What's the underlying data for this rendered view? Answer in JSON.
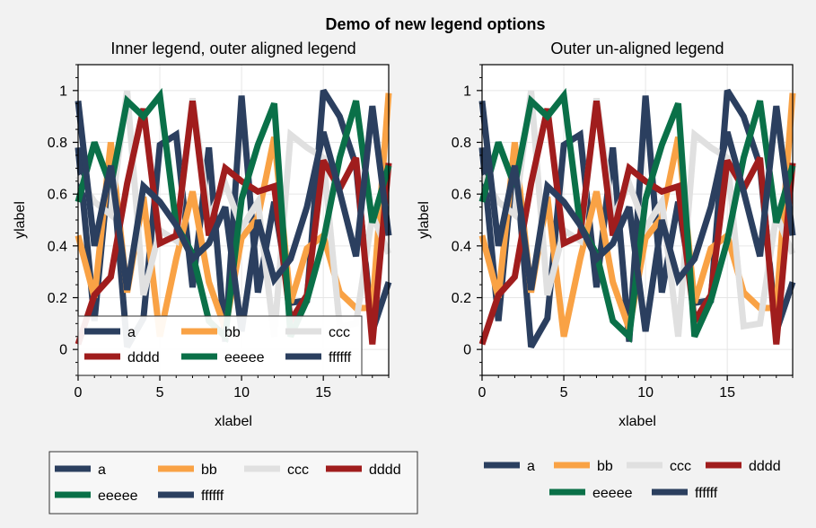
{
  "figure": {
    "suptitle": "Demo of new legend options"
  },
  "chart_data": [
    {
      "type": "line",
      "title": "Inner legend, outer aligned legend",
      "xlabel": "xlabel",
      "ylabel": "ylabel",
      "xlim": [
        0,
        19
      ],
      "ylim": [
        -0.1,
        1.1
      ],
      "xticks": [
        "0",
        "5",
        "10",
        "15"
      ],
      "yticks": [
        "0",
        "0.2",
        "0.4",
        "0.6",
        "0.8",
        "1"
      ],
      "grid": true,
      "x": [
        0,
        1,
        2,
        3,
        4,
        5,
        6,
        7,
        8,
        9,
        10,
        11,
        12,
        13,
        14,
        15,
        16,
        17,
        18,
        19
      ],
      "series": [
        {
          "name": "a",
          "color": "#2b3f5f",
          "values": [
            0.78,
            0.11,
            0.77,
            0.01,
            0.12,
            0.79,
            0.83,
            0.24,
            0.78,
            0.03,
            0.98,
            0.22,
            0.57,
            0.18,
            0.19,
            1.0,
            0.9,
            0.71,
            0.07,
            0.26
          ]
        },
        {
          "name": "bb",
          "color": "#f9a245",
          "values": [
            0.44,
            0.2,
            0.8,
            0.22,
            0.59,
            0.05,
            0.35,
            0.61,
            0.26,
            0.08,
            0.43,
            0.51,
            0.82,
            0.18,
            0.39,
            0.44,
            0.22,
            0.16,
            0.16,
            0.99
          ]
        },
        {
          "name": "ccc",
          "color": "#e0e0e0",
          "values": [
            0.67,
            0.57,
            0.52,
            1.0,
            0.21,
            0.46,
            0.42,
            0.97,
            0.51,
            0.64,
            0.47,
            0.57,
            0.05,
            0.83,
            0.78,
            0.74,
            0.09,
            0.1,
            0.52,
            0.37
          ]
        },
        {
          "name": "dddd",
          "color": "#a01d1d",
          "values": [
            0.02,
            0.21,
            0.28,
            0.64,
            0.93,
            0.41,
            0.44,
            0.96,
            0.44,
            0.7,
            0.65,
            0.61,
            0.63,
            0.11,
            0.21,
            0.73,
            0.62,
            0.74,
            0.02,
            0.72
          ]
        },
        {
          "name": "eeeee",
          "color": "#0a7048",
          "values": [
            0.57,
            0.8,
            0.63,
            0.96,
            0.9,
            0.98,
            0.48,
            0.37,
            0.11,
            0.05,
            0.58,
            0.79,
            0.95,
            0.05,
            0.19,
            0.42,
            0.74,
            0.96,
            0.49,
            0.71
          ]
        },
        {
          "name": "ffffff",
          "color": "#2b3f5f",
          "values": [
            0.96,
            0.4,
            0.71,
            0.23,
            0.63,
            0.57,
            0.48,
            0.35,
            0.41,
            0.55,
            0.07,
            0.5,
            0.27,
            0.35,
            0.55,
            0.84,
            0.61,
            0.36,
            0.94,
            0.44
          ]
        }
      ],
      "legends": [
        {
          "placement": "lower-left-inside",
          "ncol": 3,
          "framed": true,
          "entries": [
            "a",
            "bb",
            "ccc",
            "dddd",
            "eeeee",
            "ffffff"
          ]
        },
        {
          "placement": "bottom-outside",
          "ncol": 4,
          "aligned": true,
          "framed": true,
          "entries": [
            "a",
            "bb",
            "ccc",
            "dddd",
            "eeeee",
            "ffffff"
          ]
        }
      ]
    },
    {
      "type": "line",
      "title": "Outer un-aligned legend",
      "xlabel": "xlabel",
      "ylabel": "ylabel",
      "xlim": [
        0,
        19
      ],
      "ylim": [
        -0.1,
        1.1
      ],
      "xticks": [
        "0",
        "5",
        "10",
        "15"
      ],
      "yticks": [
        "0",
        "0.2",
        "0.4",
        "0.6",
        "0.8",
        "1"
      ],
      "grid": true,
      "x": [
        0,
        1,
        2,
        3,
        4,
        5,
        6,
        7,
        8,
        9,
        10,
        11,
        12,
        13,
        14,
        15,
        16,
        17,
        18,
        19
      ],
      "same_series_as_first": true,
      "legends": [
        {
          "placement": "bottom-outside",
          "ncol": 4,
          "aligned": false,
          "framed": false,
          "entries": [
            "a",
            "bb",
            "ccc",
            "dddd",
            "eeeee",
            "ffffff"
          ]
        }
      ]
    }
  ]
}
